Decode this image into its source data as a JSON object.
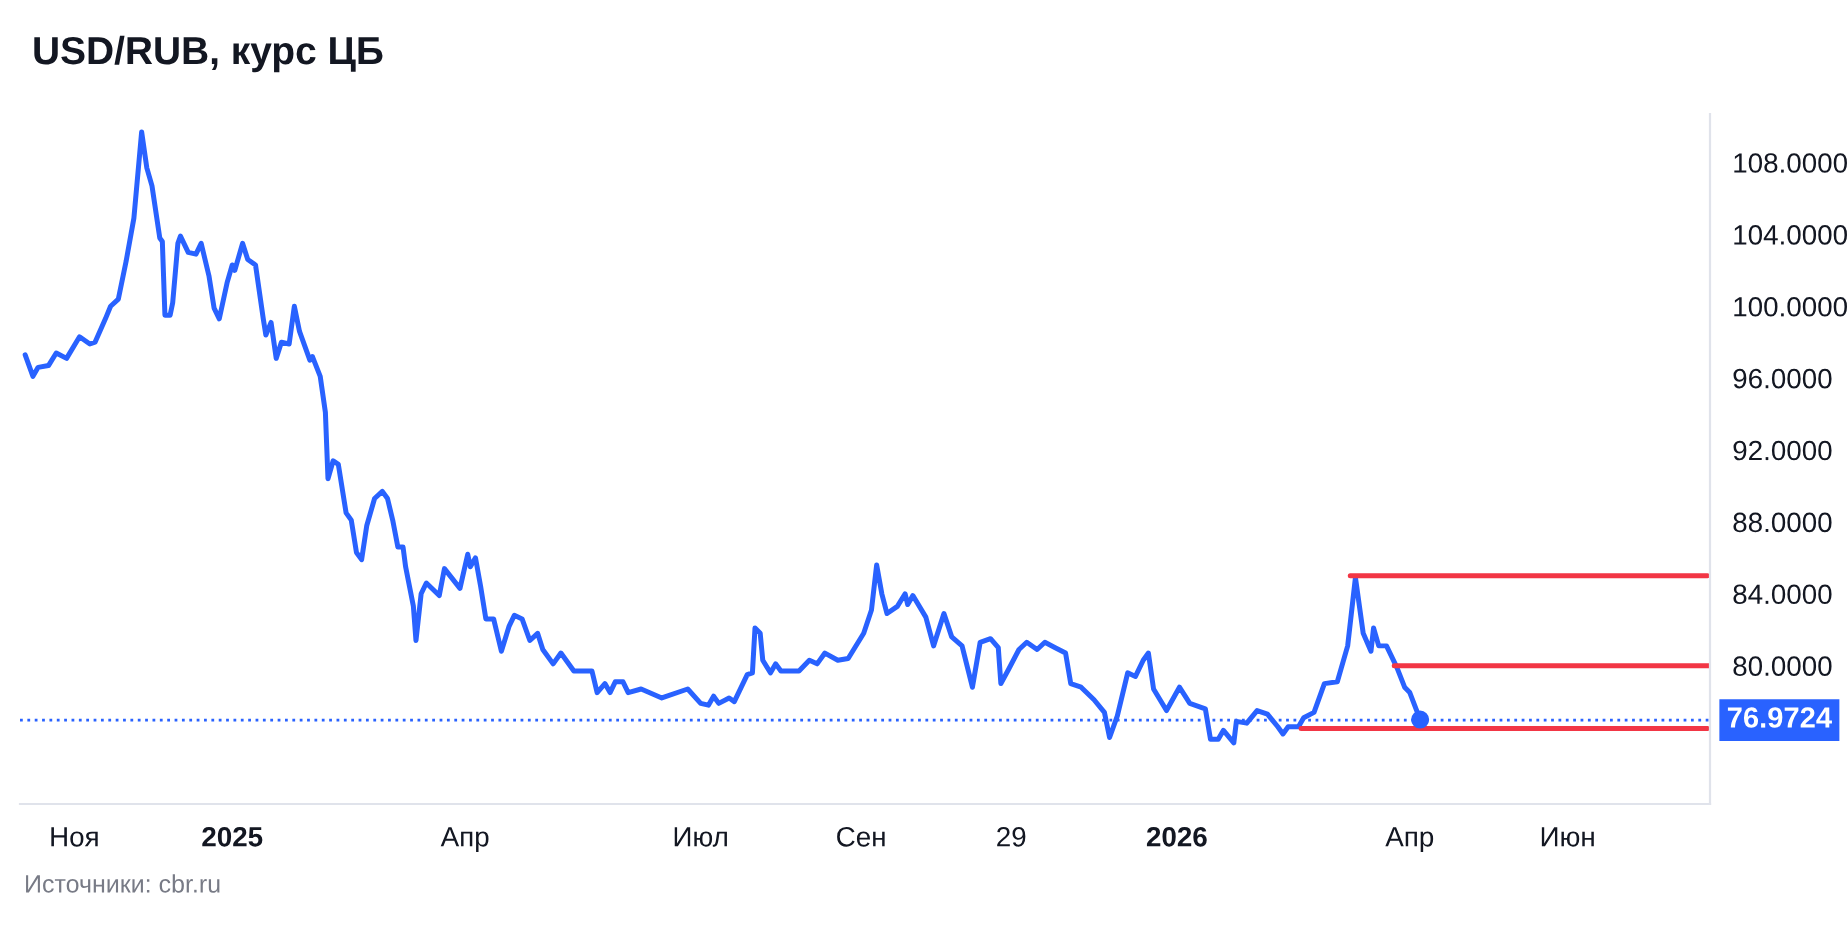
{
  "chart_data": {
    "type": "line",
    "title": "USD/RUB, курс ЦБ",
    "annotations": [
      "Источники: cbr.ru"
    ],
    "xlim": [
      "2024-10-11",
      "2026-07-26"
    ],
    "ylim": [
      72.3,
      110.7
    ],
    "xticks": [
      {
        "value": "2024-11-01",
        "label": "Ноя"
      },
      {
        "value": "2025-01-01",
        "label": "2025"
      },
      {
        "value": "2025-04-01",
        "label": "Апр"
      },
      {
        "value": "2025-07-01",
        "label": "Июл"
      },
      {
        "value": "2025-09-01",
        "label": "Сен"
      },
      {
        "value": "2025-10-29",
        "label": "29"
      },
      {
        "value": "2026-01-01",
        "label": "2026"
      },
      {
        "value": "2026-04-01",
        "label": "Апр"
      },
      {
        "value": "2026-06-01",
        "label": "Июн"
      }
    ],
    "yticks": [
      {
        "value": 80,
        "label": "80.0000"
      },
      {
        "value": 84,
        "label": "84.0000"
      },
      {
        "value": 88,
        "label": "88.0000"
      },
      {
        "value": 92,
        "label": "92.0000"
      },
      {
        "value": 96,
        "label": "96.0000"
      },
      {
        "value": 100,
        "label": "100.0000"
      },
      {
        "value": 104,
        "label": "104.0000"
      },
      {
        "value": 108,
        "label": "108.0000"
      }
    ],
    "grid": false,
    "legend": false,
    "ref_lines": [
      {
        "axis": "y",
        "value": 76.9724,
        "label": "76.9724",
        "color": "#2962ff",
        "line_style": "dotted"
      }
    ],
    "series": [
      {
        "color": "#2962ff",
        "line_style": "solid",
        "marker": "none",
        "x": [
          "2024-10-13",
          "2024-10-16",
          "2024-10-18",
          "2024-10-22",
          "2024-10-25",
          "2024-10-29",
          "2024-11-03",
          "2024-11-07",
          "2024-11-09",
          "2024-11-13",
          "2024-11-15",
          "2024-11-18",
          "2024-11-21",
          "2024-11-24",
          "2024-11-27",
          "2024-11-29",
          "2024-12-01",
          "2024-12-04",
          "2024-12-05",
          "2024-12-06",
          "2024-12-08",
          "2024-12-09",
          "2024-12-11",
          "2024-12-12",
          "2024-12-15",
          "2024-12-18",
          "2024-12-20",
          "2024-12-23",
          "2024-12-25",
          "2024-12-27",
          "2024-12-30",
          "2025-01-01",
          "2025-01-02",
          "2025-01-05",
          "2025-01-07",
          "2025-01-10",
          "2025-01-13",
          "2025-01-14",
          "2025-01-16",
          "2025-01-18",
          "2025-01-20",
          "2025-01-23",
          "2025-01-25",
          "2025-01-27",
          "2025-01-31",
          "2025-02-01",
          "2025-02-04",
          "2025-02-06",
          "2025-02-07",
          "2025-02-09",
          "2025-02-11",
          "2025-02-14",
          "2025-02-16",
          "2025-02-18",
          "2025-02-20",
          "2025-02-22",
          "2025-02-25",
          "2025-02-28",
          "2025-03-02",
          "2025-03-04",
          "2025-03-06",
          "2025-03-08",
          "2025-03-09",
          "2025-03-12",
          "2025-03-13",
          "2025-03-15",
          "2025-03-17",
          "2025-03-22",
          "2025-03-24",
          "2025-03-30",
          "2025-04-02",
          "2025-04-03",
          "2025-04-05",
          "2025-04-07",
          "2025-04-09",
          "2025-04-12",
          "2025-04-15",
          "2025-04-18",
          "2025-04-20",
          "2025-04-23",
          "2025-04-26",
          "2025-04-29",
          "2025-05-01",
          "2025-05-05",
          "2025-05-08",
          "2025-05-13",
          "2025-05-20",
          "2025-05-22",
          "2025-05-25",
          "2025-05-27",
          "2025-05-29",
          "2025-06-01",
          "2025-06-03",
          "2025-06-08",
          "2025-06-16",
          "2025-06-26",
          "2025-07-01",
          "2025-07-04",
          "2025-07-06",
          "2025-07-08",
          "2025-07-12",
          "2025-07-14",
          "2025-07-19",
          "2025-07-21",
          "2025-07-22",
          "2025-07-24",
          "2025-07-25",
          "2025-07-28",
          "2025-07-30",
          "2025-08-01",
          "2025-08-08",
          "2025-08-12",
          "2025-08-15",
          "2025-08-18",
          "2025-08-23",
          "2025-08-27",
          "2025-09-02",
          "2025-09-05",
          "2025-09-07",
          "2025-09-09",
          "2025-09-11",
          "2025-09-15",
          "2025-09-18",
          "2025-09-19",
          "2025-09-21",
          "2025-09-26",
          "2025-09-29",
          "2025-10-03",
          "2025-10-06",
          "2025-10-10",
          "2025-10-14",
          "2025-10-17",
          "2025-10-21",
          "2025-10-24",
          "2025-10-25",
          "2025-10-28",
          "2025-11-01",
          "2025-11-04",
          "2025-11-08",
          "2025-11-11",
          "2025-11-15",
          "2025-11-19",
          "2025-11-21",
          "2025-11-25",
          "2025-11-30",
          "2025-12-04",
          "2025-12-06",
          "2025-12-09",
          "2025-12-13",
          "2025-12-16",
          "2025-12-19",
          "2025-12-21",
          "2025-12-23",
          "2025-12-28",
          "2026-01-02",
          "2026-01-06",
          "2026-01-12",
          "2026-01-14",
          "2026-01-17",
          "2026-01-19",
          "2026-01-23",
          "2026-01-24",
          "2026-01-28",
          "2026-02-01",
          "2026-02-05",
          "2026-02-09",
          "2026-02-11",
          "2026-02-13",
          "2026-02-17",
          "2026-02-19",
          "2026-02-23",
          "2026-02-27",
          "2026-03-04",
          "2026-03-08",
          "2026-03-11",
          "2026-03-14",
          "2026-03-17",
          "2026-03-18",
          "2026-03-20",
          "2026-03-23",
          "2026-03-27",
          "2026-03-30",
          "2026-04-01",
          "2026-04-05"
        ],
        "values": [
          97.3,
          96.1,
          96.6,
          96.7,
          97.4,
          97.1,
          98.3,
          97.9,
          98.0,
          99.3,
          100.0,
          100.4,
          102.5,
          104.9,
          109.7,
          107.7,
          106.7,
          103.8,
          103.6,
          99.5,
          99.5,
          100.2,
          103.5,
          103.9,
          103.0,
          102.9,
          103.5,
          101.7,
          99.9,
          99.3,
          101.3,
          102.3,
          102.0,
          103.5,
          102.6,
          102.3,
          99.3,
          98.4,
          99.1,
          97.1,
          98.0,
          97.9,
          100.0,
          98.6,
          97.0,
          97.2,
          96.1,
          94.1,
          90.4,
          91.4,
          91.2,
          88.5,
          88.1,
          86.3,
          85.9,
          87.8,
          89.3,
          89.7,
          89.3,
          88.1,
          86.6,
          86.6,
          85.5,
          83.3,
          81.4,
          84.0,
          84.6,
          83.9,
          85.4,
          84.3,
          86.2,
          85.5,
          86.0,
          84.4,
          82.6,
          82.6,
          80.8,
          82.2,
          82.8,
          82.6,
          81.4,
          81.8,
          80.9,
          80.1,
          80.7,
          79.7,
          79.7,
          78.5,
          79.0,
          78.5,
          79.1,
          79.1,
          78.5,
          78.7,
          78.2,
          78.7,
          77.9,
          77.8,
          78.3,
          77.9,
          78.2,
          78.0,
          79.5,
          79.6,
          82.1,
          81.8,
          80.3,
          79.6,
          80.1,
          79.7,
          79.7,
          80.3,
          80.1,
          80.7,
          80.3,
          80.4,
          81.8,
          83.1,
          85.6,
          84.0,
          82.9,
          83.3,
          84.0,
          83.4,
          83.9,
          82.7,
          81.1,
          82.9,
          81.6,
          81.1,
          78.8,
          81.3,
          81.5,
          81.0,
          79.0,
          79.8,
          80.9,
          81.3,
          80.9,
          81.3,
          81.0,
          80.7,
          79.0,
          78.8,
          78.1,
          77.4,
          76.0,
          77.2,
          79.6,
          79.4,
          80.3,
          80.7,
          78.7,
          77.5,
          78.8,
          77.9,
          77.6,
          75.9,
          75.9,
          76.4,
          75.7,
          76.9,
          76.8,
          77.5,
          77.3,
          76.6,
          76.2,
          76.6,
          76.6,
          77.1,
          77.4,
          79.0,
          79.1,
          81.1,
          84.9,
          81.8,
          80.8,
          82.1,
          81.1,
          81.1,
          79.9,
          78.8,
          78.5,
          77.0
        ]
      },
      {
        "type": "scatter",
        "color": "#2962ff",
        "marker": "circle",
        "x": [
          "2026-04-05"
        ],
        "values": [
          77.0
        ]
      },
      {
        "type": "line",
        "color": "#f23645",
        "line_style": "solid",
        "marker": "none",
        "x": [
          "2026-03-09",
          "2026-07-25"
        ],
        "values": [
          85.0,
          85.0
        ]
      },
      {
        "type": "line",
        "color": "#f23645",
        "line_style": "solid",
        "marker": "none",
        "x": [
          "2026-03-26",
          "2026-07-26"
        ],
        "values": [
          80.0,
          80.0
        ]
      },
      {
        "type": "line",
        "color": "#f23645",
        "line_style": "solid",
        "marker": "none",
        "x": [
          "2026-02-18",
          "2026-07-25"
        ],
        "values": [
          76.5,
          76.5
        ]
      }
    ]
  }
}
